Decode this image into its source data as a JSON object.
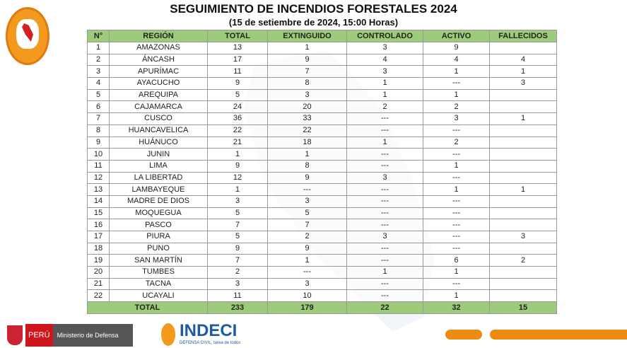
{
  "title": "SEGUIMIENTO DE INCENDIOS FORESTALES 2024",
  "subtitle": "(15 de setiembre de 2024, 15:00 Horas)",
  "columns": [
    "N°",
    "REGIÓN",
    "TOTAL",
    "EXTINGUIDO",
    "CONTROLADO",
    "ACTIVO",
    "FALLECIDOS"
  ],
  "rows": [
    [
      "1",
      "AMAZONAS",
      "13",
      "1",
      "3",
      "9",
      ""
    ],
    [
      "2",
      "ÁNCASH",
      "17",
      "9",
      "4",
      "4",
      "4"
    ],
    [
      "3",
      "APURÍMAC",
      "11",
      "7",
      "3",
      "1",
      "1"
    ],
    [
      "4",
      "AYACUCHO",
      "9",
      "8",
      "1",
      "---",
      "3"
    ],
    [
      "5",
      "AREQUIPA",
      "5",
      "3",
      "1",
      "1",
      ""
    ],
    [
      "6",
      "CAJAMARCA",
      "24",
      "20",
      "2",
      "2",
      ""
    ],
    [
      "7",
      "CUSCO",
      "36",
      "33",
      "---",
      "3",
      "1"
    ],
    [
      "8",
      "HUANCAVELICA",
      "22",
      "22",
      "---",
      "---",
      ""
    ],
    [
      "9",
      "HUÁNUCO",
      "21",
      "18",
      "1",
      "2",
      ""
    ],
    [
      "10",
      "JUNIN",
      "1",
      "1",
      "---",
      "---",
      ""
    ],
    [
      "11",
      "LIMA",
      "9",
      "8",
      "---",
      "1",
      ""
    ],
    [
      "12",
      "LA LIBERTAD",
      "12",
      "9",
      "3",
      "---",
      ""
    ],
    [
      "13",
      "LAMBAYEQUE",
      "1",
      "---",
      "---",
      "1",
      "1"
    ],
    [
      "14",
      "MADRE DE DIOS",
      "3",
      "3",
      "---",
      "---",
      ""
    ],
    [
      "15",
      "MOQUEGUA",
      "5",
      "5",
      "---",
      "---",
      ""
    ],
    [
      "16",
      "PASCO",
      "7",
      "7",
      "---",
      "---",
      ""
    ],
    [
      "17",
      "PIURA",
      "5",
      "2",
      "3",
      "---",
      "3"
    ],
    [
      "18",
      "PUNO",
      "9",
      "9",
      "---",
      "---",
      ""
    ],
    [
      "19",
      "SAN MARTÍN",
      "7",
      "1",
      "---",
      "6",
      "2"
    ],
    [
      "20",
      "TUMBES",
      "2",
      "---",
      "1",
      "1",
      ""
    ],
    [
      "21",
      "TACNA",
      "3",
      "3",
      "---",
      "---",
      ""
    ],
    [
      "22",
      "UCAYALI",
      "11",
      "10",
      "---",
      "1",
      ""
    ]
  ],
  "total": {
    "label": "TOTAL",
    "values": [
      "233",
      "179",
      "22",
      "32",
      "15"
    ]
  },
  "footer": {
    "peru": "PERÚ",
    "ministry": "Ministerio de Defensa",
    "indeci": "INDECI",
    "indeci_tagline": "DEFENSA CIVIL, tarea de todos"
  },
  "colors": {
    "header_green": "#9ccc7a",
    "accent_orange": "#ee8a10",
    "indeci_blue": "#1f5aa6"
  }
}
